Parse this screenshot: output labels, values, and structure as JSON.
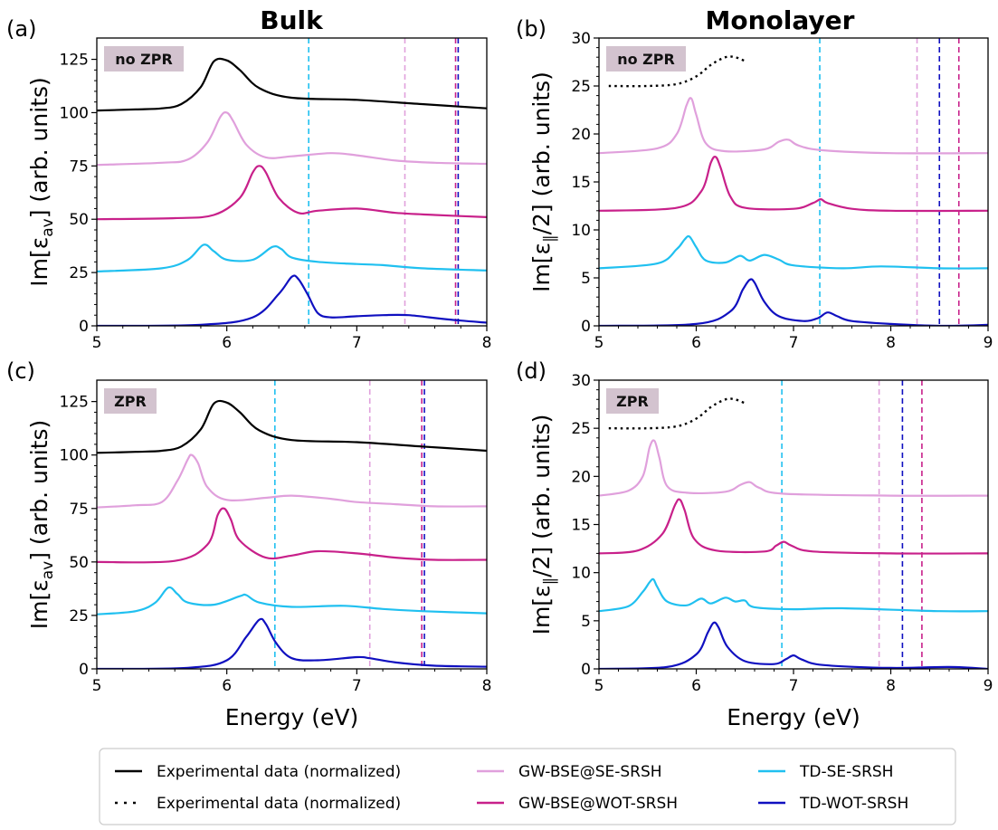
{
  "column_titles": [
    "Bulk",
    "Monolayer"
  ],
  "chart_data": [
    {
      "type": "line",
      "panel_label": "(a)",
      "badge": "no ZPR",
      "xlabel": "",
      "ylabel": "Im[ε_av] (arb. units)",
      "xlim": [
        5,
        8
      ],
      "ylim": [
        0,
        135
      ],
      "xticks": [
        5,
        6,
        7,
        8
      ],
      "yticks": [
        0,
        25,
        50,
        75,
        100,
        125
      ],
      "series": [
        {
          "style": "exp-solid",
          "color": "#000000",
          "x": [
            5,
            5.3,
            5.5,
            5.65,
            5.8,
            5.9,
            6.0,
            6.1,
            6.25,
            6.5,
            7.0,
            7.5,
            8
          ],
          "y": [
            101,
            101.5,
            102,
            104,
            112,
            124,
            124.5,
            120,
            111.5,
            107,
            106,
            104,
            102
          ]
        },
        {
          "style": "curve",
          "color": "#e0a0dc",
          "x": [
            5,
            5.5,
            5.7,
            5.85,
            5.95,
            6.0,
            6.05,
            6.15,
            6.3,
            6.5,
            6.8,
            7.0,
            7.3,
            7.6,
            8
          ],
          "y": [
            75.5,
            76.5,
            78,
            86,
            98,
            100,
            96,
            85,
            79,
            79.5,
            81,
            80,
            77.5,
            76.5,
            76
          ]
        },
        {
          "style": "curve",
          "color": "#c8208a",
          "x": [
            5,
            5.6,
            5.9,
            6.1,
            6.2,
            6.25,
            6.3,
            6.4,
            6.55,
            6.7,
            7.0,
            7.3,
            7.6,
            8
          ],
          "y": [
            50,
            50.5,
            52,
            60,
            72,
            75,
            72,
            60,
            53,
            54,
            55,
            53,
            52,
            51
          ]
        },
        {
          "style": "curve",
          "color": "#20c0f0",
          "x": [
            5,
            5.5,
            5.7,
            5.82,
            5.9,
            6.0,
            6.2,
            6.35,
            6.42,
            6.5,
            6.7,
            7.0,
            7.2,
            7.5,
            8
          ],
          "y": [
            25.5,
            27,
            31,
            38,
            35,
            31,
            31,
            37,
            36,
            32,
            30,
            29,
            28.5,
            27,
            26
          ]
        },
        {
          "style": "curve",
          "color": "#1010c0",
          "x": [
            5,
            5.8,
            6.2,
            6.4,
            6.5,
            6.55,
            6.62,
            6.7,
            6.8,
            7.0,
            7.2,
            7.4,
            7.7,
            8
          ],
          "y": [
            0,
            0.5,
            4,
            15,
            23,
            22,
            15,
            6,
            4,
            4.5,
            5,
            5,
            3,
            1.5
          ]
        }
      ],
      "vlines": [
        {
          "x": 6.63,
          "color": "#20c0f0"
        },
        {
          "x": 7.37,
          "color": "#e0a0dc"
        },
        {
          "x": 7.76,
          "color": "#c8208a"
        },
        {
          "x": 7.78,
          "color": "#1010c0"
        }
      ]
    },
    {
      "type": "line",
      "panel_label": "(b)",
      "badge": "no ZPR",
      "xlabel": "",
      "ylabel": "Im[ε_∥/2] (arb. units)",
      "xlim": [
        5,
        9
      ],
      "ylim": [
        0,
        30
      ],
      "xticks": [
        5,
        6,
        7,
        8,
        9
      ],
      "yticks": [
        0,
        5,
        10,
        15,
        20,
        25,
        30
      ],
      "series": [
        {
          "style": "exp-dotted",
          "color": "#000000",
          "x": [
            5.1,
            5.5,
            5.8,
            6.0,
            6.15,
            6.3,
            6.4,
            6.5
          ],
          "y": [
            25,
            25,
            25.2,
            26,
            27.2,
            28,
            28,
            27.6
          ]
        },
        {
          "style": "curve",
          "color": "#e0a0dc",
          "x": [
            5,
            5.6,
            5.8,
            5.9,
            5.95,
            6.0,
            6.1,
            6.3,
            6.7,
            6.85,
            6.95,
            7.05,
            7.3,
            8,
            9
          ],
          "y": [
            18,
            18.5,
            20,
            23,
            23.7,
            22,
            19,
            18.2,
            18.4,
            19.2,
            19.4,
            18.8,
            18.3,
            18,
            18
          ]
        },
        {
          "style": "curve",
          "color": "#c8208a",
          "x": [
            5,
            5.8,
            6.05,
            6.15,
            6.2,
            6.25,
            6.35,
            6.5,
            7.0,
            7.2,
            7.28,
            7.35,
            7.6,
            8,
            9
          ],
          "y": [
            12,
            12.3,
            14,
            17,
            17.6,
            16.5,
            13.5,
            12.3,
            12.2,
            12.8,
            13.2,
            12.8,
            12.2,
            12,
            12
          ]
        },
        {
          "style": "curve",
          "color": "#20c0f0",
          "x": [
            5,
            5.6,
            5.8,
            5.88,
            5.93,
            6.0,
            6.1,
            6.3,
            6.45,
            6.55,
            6.7,
            6.85,
            7.0,
            7.5,
            7.9,
            8.5,
            9
          ],
          "y": [
            6,
            6.5,
            8,
            9,
            9.3,
            8.2,
            6.8,
            6.6,
            7.3,
            6.8,
            7.4,
            6.9,
            6.3,
            6,
            6.2,
            6,
            6
          ]
        },
        {
          "style": "curve",
          "color": "#1010c0",
          "x": [
            5,
            6.0,
            6.35,
            6.48,
            6.55,
            6.6,
            6.7,
            6.85,
            7.1,
            7.25,
            7.35,
            7.45,
            7.6,
            8,
            8.5,
            9
          ],
          "y": [
            0,
            0.2,
            1.5,
            3.8,
            4.8,
            4.5,
            2.5,
            1,
            0.5,
            0.8,
            1.4,
            1,
            0.5,
            0.2,
            0,
            0.1
          ]
        }
      ],
      "vlines": [
        {
          "x": 7.27,
          "color": "#20c0f0"
        },
        {
          "x": 8.27,
          "color": "#e0a0dc"
        },
        {
          "x": 8.5,
          "color": "#1010c0"
        },
        {
          "x": 8.7,
          "color": "#c8208a"
        }
      ]
    },
    {
      "type": "line",
      "panel_label": "(c)",
      "badge": "ZPR",
      "xlabel": "Energy (eV)",
      "ylabel": "Im[ε_av] (arb. units)",
      "xlim": [
        5,
        8
      ],
      "ylim": [
        0,
        135
      ],
      "xticks": [
        5,
        6,
        7,
        8
      ],
      "yticks": [
        0,
        25,
        50,
        75,
        100,
        125
      ],
      "series": [
        {
          "style": "exp-solid",
          "color": "#000000",
          "x": [
            5,
            5.3,
            5.5,
            5.65,
            5.8,
            5.9,
            6.0,
            6.1,
            6.25,
            6.5,
            7.0,
            7.5,
            8
          ],
          "y": [
            101,
            101.5,
            102,
            104,
            112,
            124,
            124.5,
            120,
            111.5,
            107,
            106,
            104,
            102
          ]
        },
        {
          "style": "curve",
          "color": "#e0a0dc",
          "x": [
            5,
            5.3,
            5.5,
            5.62,
            5.7,
            5.73,
            5.78,
            5.85,
            6.0,
            6.3,
            6.5,
            6.8,
            7.0,
            7.3,
            7.6,
            8
          ],
          "y": [
            75.5,
            76.5,
            78,
            88,
            98,
            100,
            96,
            85,
            79,
            80,
            81,
            79.5,
            78,
            77,
            76,
            76
          ]
        },
        {
          "style": "curve",
          "color": "#c8208a",
          "x": [
            5,
            5.6,
            5.85,
            5.93,
            5.98,
            6.03,
            6.1,
            6.3,
            6.5,
            6.7,
            7.0,
            7.3,
            7.6,
            8
          ],
          "y": [
            50,
            50.5,
            58,
            72,
            75,
            70,
            60,
            52,
            53,
            55,
            54,
            52,
            51,
            51
          ]
        },
        {
          "style": "curve",
          "color": "#20c0f0",
          "x": [
            5,
            5.3,
            5.45,
            5.55,
            5.62,
            5.7,
            5.9,
            6.1,
            6.15,
            6.25,
            6.5,
            6.9,
            7.2,
            7.5,
            8
          ],
          "y": [
            25.5,
            27,
            31,
            38,
            35,
            31,
            30,
            34,
            34.5,
            31,
            29,
            29.5,
            28,
            27,
            26
          ]
        },
        {
          "style": "curve",
          "color": "#1010c0",
          "x": [
            5,
            5.7,
            6.0,
            6.15,
            6.25,
            6.3,
            6.38,
            6.5,
            6.7,
            7.0,
            7.1,
            7.3,
            7.6,
            8
          ],
          "y": [
            0,
            0.5,
            4,
            15,
            23,
            21,
            12,
            5,
            4,
            5.5,
            5,
            3,
            1.5,
            1
          ]
        }
      ],
      "vlines": [
        {
          "x": 6.37,
          "color": "#20c0f0"
        },
        {
          "x": 7.1,
          "color": "#e0a0dc"
        },
        {
          "x": 7.5,
          "color": "#c8208a"
        },
        {
          "x": 7.52,
          "color": "#1010c0"
        }
      ]
    },
    {
      "type": "line",
      "panel_label": "(d)",
      "badge": "ZPR",
      "xlabel": "Energy (eV)",
      "ylabel": "Im[ε_∥/2] (arb. units)",
      "xlim": [
        5,
        9
      ],
      "ylim": [
        0,
        30
      ],
      "xticks": [
        5,
        6,
        7,
        8,
        9
      ],
      "yticks": [
        0,
        5,
        10,
        15,
        20,
        25,
        30
      ],
      "series": [
        {
          "style": "exp-dotted",
          "color": "#000000",
          "x": [
            5.1,
            5.5,
            5.8,
            6.0,
            6.15,
            6.3,
            6.4,
            6.5
          ],
          "y": [
            25,
            25,
            25.2,
            26,
            27.2,
            28,
            28,
            27.6
          ]
        },
        {
          "style": "curve",
          "color": "#e0a0dc",
          "x": [
            5,
            5.3,
            5.45,
            5.52,
            5.57,
            5.62,
            5.7,
            5.9,
            6.3,
            6.45,
            6.55,
            6.65,
            6.9,
            8,
            9
          ],
          "y": [
            18,
            18.5,
            20,
            23,
            23.7,
            22,
            19,
            18.3,
            18.4,
            19.1,
            19.4,
            18.8,
            18.2,
            18,
            18
          ]
        },
        {
          "style": "curve",
          "color": "#c8208a",
          "x": [
            5,
            5.4,
            5.65,
            5.78,
            5.83,
            5.88,
            5.98,
            6.2,
            6.7,
            6.82,
            6.9,
            6.98,
            7.2,
            8,
            9
          ],
          "y": [
            12,
            12.3,
            14,
            17,
            17.6,
            16.5,
            13.5,
            12.3,
            12.2,
            12.8,
            13.2,
            12.8,
            12.2,
            12,
            12
          ]
        },
        {
          "style": "curve",
          "color": "#20c0f0",
          "x": [
            5,
            5.3,
            5.45,
            5.52,
            5.56,
            5.6,
            5.7,
            5.9,
            6.05,
            6.15,
            6.3,
            6.4,
            6.5,
            6.6,
            7.0,
            7.5,
            8.5,
            9
          ],
          "y": [
            6,
            6.5,
            8,
            9,
            9.3,
            8.5,
            7,
            6.6,
            7.3,
            6.8,
            7.4,
            7.0,
            7.1,
            6.4,
            6.2,
            6.3,
            6,
            6
          ]
        },
        {
          "style": "curve",
          "color": "#1010c0",
          "x": [
            5,
            5.7,
            6.0,
            6.12,
            6.18,
            6.23,
            6.32,
            6.5,
            6.8,
            6.92,
            7.0,
            7.08,
            7.3,
            8,
            8.6,
            9
          ],
          "y": [
            0,
            0.2,
            1.5,
            3.8,
            4.8,
            4.3,
            2.3,
            0.8,
            0.5,
            1.0,
            1.4,
            1.0,
            0.4,
            0.1,
            0.2,
            0
          ]
        }
      ],
      "vlines": [
        {
          "x": 6.88,
          "color": "#20c0f0"
        },
        {
          "x": 7.88,
          "color": "#e0a0dc"
        },
        {
          "x": 8.12,
          "color": "#1010c0"
        },
        {
          "x": 8.32,
          "color": "#c8208a"
        }
      ]
    }
  ],
  "legend": [
    {
      "label": "Experimental data (normalized)",
      "color": "#000000",
      "style": "solid"
    },
    {
      "label": "GW-BSE@SE-SRSH",
      "color": "#e0a0dc",
      "style": "solid"
    },
    {
      "label": "TD-SE-SRSH",
      "color": "#20c0f0",
      "style": "solid"
    },
    {
      "label": "Experimental data (normalized)",
      "color": "#000000",
      "style": "dotted"
    },
    {
      "label": "GW-BSE@WOT-SRSH",
      "color": "#c8208a",
      "style": "solid"
    },
    {
      "label": "TD-WOT-SRSH",
      "color": "#1010c0",
      "style": "solid"
    }
  ]
}
